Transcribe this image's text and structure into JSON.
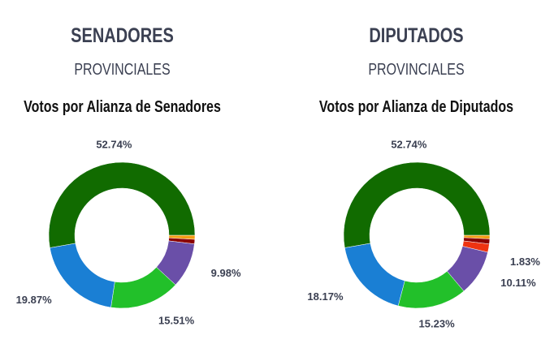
{
  "chart_data": [
    {
      "type": "pie",
      "title": "SENADORES",
      "subtitle": "PROVINCIALES",
      "chart_title": "Votos por Alianza de Senadores",
      "slices": [
        {
          "value": 0.9,
          "color": "#f39c12",
          "label": ""
        },
        {
          "value": 1.0,
          "color": "#8b0000",
          "label": ""
        },
        {
          "value": 9.98,
          "color": "#6a4fa8",
          "label": "9.98%"
        },
        {
          "value": 15.51,
          "color": "#22c02a",
          "label": "15.51%"
        },
        {
          "value": 19.87,
          "color": "#1a7fd4",
          "label": "19.87%"
        },
        {
          "value": 52.74,
          "color": "#116b00",
          "label": "52.74%"
        }
      ]
    },
    {
      "type": "pie",
      "title": "DIPUTADOS",
      "subtitle": "PROVINCIALES",
      "chart_title": "Votos por Alianza de Diputados",
      "slices": [
        {
          "value": 0.8,
          "color": "#f39c12",
          "label": ""
        },
        {
          "value": 1.12,
          "color": "#8b0000",
          "label": ""
        },
        {
          "value": 1.83,
          "color": "#ee3311",
          "label": "1.83%"
        },
        {
          "value": 10.11,
          "color": "#6a4fa8",
          "label": "10.11%"
        },
        {
          "value": 15.23,
          "color": "#22c02a",
          "label": "15.23%"
        },
        {
          "value": 18.17,
          "color": "#1a7fd4",
          "label": "18.17%"
        },
        {
          "value": 52.74,
          "color": "#116b00",
          "label": "52.74%"
        }
      ]
    }
  ]
}
